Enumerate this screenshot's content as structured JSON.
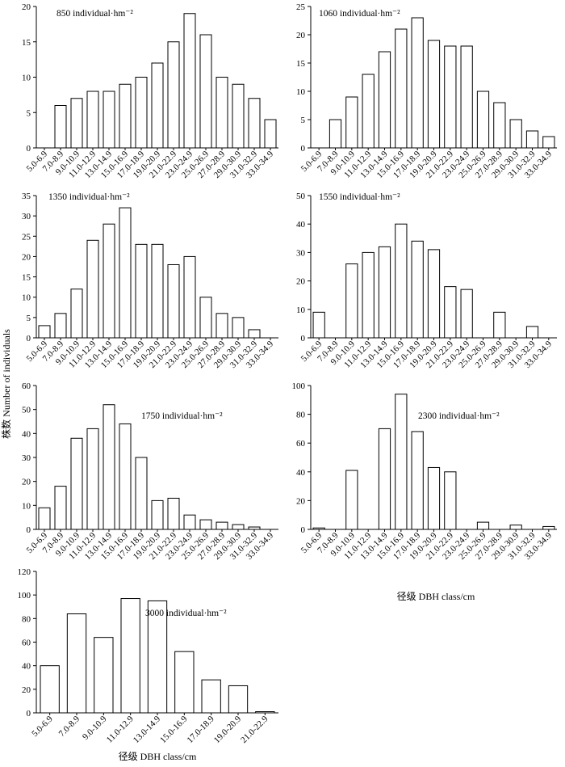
{
  "ylabel": "株数 Number of individuals",
  "chart_data": [
    {
      "type": "bar",
      "annotation": "850 individual·hm⁻²",
      "color": "#ffffff",
      "categories": [
        "5.0-6.9",
        "7.0-8.9",
        "9.0-10.9",
        "11.0-12.9",
        "13.0-14.9",
        "15.0-16.9",
        "17.0-18.9",
        "19.0-20.9",
        "21.0-22.9",
        "23.0-24.9",
        "25.0-26.9",
        "27.0-28.9",
        "29.0-30.9",
        "31.0-32.9",
        "33.0-34.9"
      ],
      "values": [
        0,
        6,
        7,
        8,
        8,
        9,
        10,
        12,
        15,
        19,
        16,
        10,
        9,
        7,
        4
      ],
      "ylim": [
        0,
        20
      ],
      "yticks": [
        0,
        5,
        10,
        15,
        20
      ]
    },
    {
      "type": "bar",
      "annotation": "1060 individual·hm⁻²",
      "color": "#ffffff",
      "categories": [
        "5.0-6.9",
        "7.0-8.9",
        "9.0-10.9",
        "11.0-12.9",
        "13.0-14.9",
        "15.0-16.9",
        "17.0-18.9",
        "19.0-20.9",
        "21.0-22.9",
        "23.0-24.9",
        "25.0-26.9",
        "27.0-28.9",
        "29.0-30.9",
        "31.0-32.9",
        "33.0-34.9"
      ],
      "values": [
        0,
        5,
        9,
        13,
        17,
        21,
        23,
        19,
        18,
        18,
        10,
        8,
        5,
        3,
        2
      ],
      "ylim": [
        0,
        25
      ],
      "yticks": [
        0,
        5,
        10,
        15,
        20,
        25
      ]
    },
    {
      "type": "bar",
      "annotation": "1350 individual·hm⁻²",
      "color": "#ffffff",
      "categories": [
        "5.0-6.9",
        "7.0-8.9",
        "9.0-10.9",
        "11.0-12.9",
        "13.0-14.9",
        "15.0-16.9",
        "17.0-18.9",
        "19.0-20.9",
        "21.0-22.9",
        "23.0-24.9",
        "25.0-26.9",
        "27.0-28.9",
        "29.0-30.9",
        "31.0-32.9",
        "33.0-34.9"
      ],
      "values": [
        3,
        6,
        12,
        24,
        28,
        32,
        23,
        23,
        18,
        20,
        10,
        6,
        5,
        2,
        0
      ],
      "ylim": [
        0,
        35
      ],
      "yticks": [
        0,
        5,
        10,
        15,
        20,
        25,
        30,
        35
      ]
    },
    {
      "type": "bar",
      "annotation": "1550 individual·hm⁻²",
      "color": "#ffffff",
      "categories": [
        "5.0-6.9",
        "7.0-8.9",
        "9.0-10.9",
        "11.0-12.9",
        "13.0-14.9",
        "15.0-16.9",
        "17.0-18.9",
        "19.0-20.9",
        "21.0-22.9",
        "23.0-24.9",
        "25.0-26.9",
        "27.0-28.9",
        "29.0-30.9",
        "31.0-32.9",
        "33.0-34.9"
      ],
      "values": [
        9,
        0,
        26,
        30,
        32,
        40,
        34,
        31,
        18,
        17,
        0,
        9,
        0,
        4,
        0
      ],
      "ylim": [
        0,
        50
      ],
      "yticks": [
        0,
        10,
        20,
        30,
        40,
        50
      ]
    },
    {
      "type": "bar",
      "annotation": "1750 individual·hm⁻²",
      "color": "#ffffff",
      "categories": [
        "5.0-6.9",
        "7.0-8.9",
        "9.0-10.9",
        "11.0-12.9",
        "13.0-14.9",
        "15.0-16.9",
        "17.0-18.9",
        "19.0-20.9",
        "21.0-22.9",
        "23.0-24.9",
        "25.0-26.9",
        "27.0-28.9",
        "29.0-30.9",
        "31.0-32.9",
        "33.0-34.9"
      ],
      "values": [
        9,
        18,
        38,
        42,
        52,
        44,
        30,
        12,
        13,
        6,
        4,
        3,
        2,
        1,
        0
      ],
      "ylim": [
        0,
        60
      ],
      "yticks": [
        0,
        10,
        20,
        30,
        40,
        50,
        60
      ]
    },
    {
      "type": "bar",
      "annotation": "2300 individual·hm⁻²",
      "color": "#ffffff",
      "xlabel": "径级 DBH class/cm",
      "categories": [
        "5.0-6.9",
        "7.0-8.9",
        "9.0-10.9",
        "11.0-12.9",
        "13.0-14.9",
        "15.0-16.9",
        "17.0-18.9",
        "19.0-20.9",
        "21.0-22.9",
        "23.0-24.9",
        "25.0-26.9",
        "27.0-28.9",
        "29.0-30.9",
        "31.0-32.9",
        "33.0-34.9"
      ],
      "values": [
        1,
        0,
        41,
        0,
        70,
        94,
        68,
        43,
        40,
        0,
        5,
        0,
        3,
        0,
        2
      ],
      "ylim": [
        0,
        100
      ],
      "yticks": [
        0,
        20,
        40,
        60,
        80,
        100
      ]
    },
    {
      "type": "bar",
      "annotation": "3000 individual·hm⁻²",
      "color": "#ffffff",
      "xlabel": "径级 DBH class/cm",
      "categories": [
        "5.0-6.9",
        "7.0-8.9",
        "9.0-10.9",
        "11.0-12.9",
        "13.0-14.9",
        "15.0-16.9",
        "17.0-18.9",
        "19.0-20.9",
        "21.0-22.9"
      ],
      "values": [
        40,
        84,
        64,
        97,
        95,
        52,
        28,
        23,
        1
      ],
      "ylim": [
        0,
        120
      ],
      "yticks": [
        0,
        20,
        40,
        60,
        80,
        100,
        120
      ]
    }
  ]
}
